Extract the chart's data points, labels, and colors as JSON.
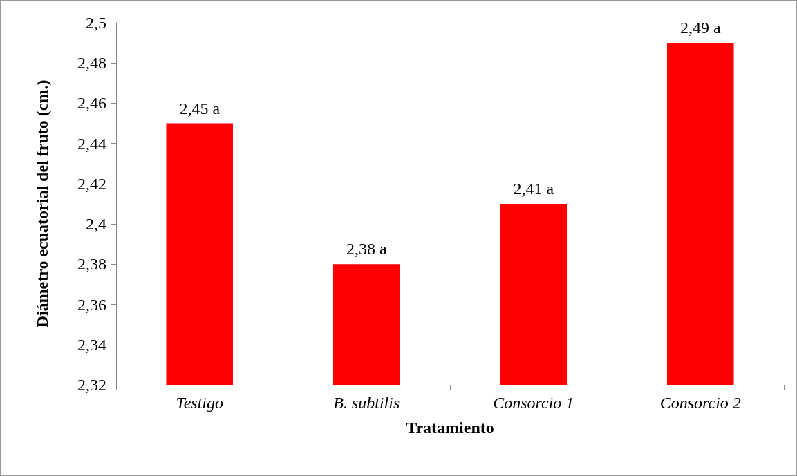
{
  "chart_data": {
    "type": "bar",
    "xlabel": "Tratamiento",
    "ylabel": "Diámetro ecuatorial del fruto (cm.)",
    "categories": [
      "Testigo",
      "B. subtilis",
      "Consorcio 1",
      "Consorcio 2"
    ],
    "values": [
      2.45,
      2.38,
      2.41,
      2.49
    ],
    "value_labels": [
      "2,45 a",
      "2,38 a",
      "2,41 a",
      "2,49 a"
    ],
    "color": "#ff0000",
    "ylim": [
      2.32,
      2.5
    ],
    "yticks": [
      {
        "value": 2.32,
        "label": "2,32"
      },
      {
        "value": 2.34,
        "label": "2,34"
      },
      {
        "value": 2.36,
        "label": "2,36"
      },
      {
        "value": 2.38,
        "label": "2,38"
      },
      {
        "value": 2.4,
        "label": "2,4"
      },
      {
        "value": 2.42,
        "label": "2,42"
      },
      {
        "value": 2.44,
        "label": "2,44"
      },
      {
        "value": 2.46,
        "label": "2,46"
      },
      {
        "value": 2.48,
        "label": "2,48"
      },
      {
        "value": 2.5,
        "label": "2,5"
      }
    ],
    "grid": false
  }
}
